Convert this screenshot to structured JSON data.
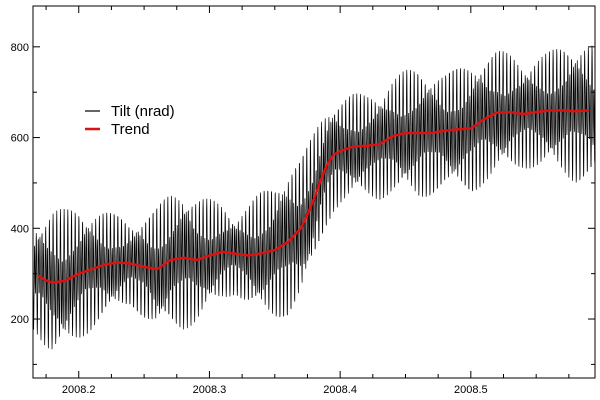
{
  "chart_data": {
    "type": "line",
    "title": "",
    "xlabel": "",
    "ylabel": "",
    "xlim": [
      2008.165,
      2008.595
    ],
    "ylim": [
      70,
      890
    ],
    "xticks_major": [
      2008.2,
      2008.3,
      2008.4,
      2008.5
    ],
    "xtick_labels": [
      "2008.2",
      "2008.3",
      "2008.4",
      "2008.5"
    ],
    "xticks_minor_step": 0.025,
    "yticks_major": [
      200,
      400,
      600,
      800
    ],
    "ytick_labels": [
      "200",
      "400",
      "600",
      "800"
    ],
    "yticks_minor": [
      100,
      300,
      500,
      700
    ],
    "grid": false,
    "legend_position": "upper-left",
    "series": [
      {
        "name": "Tilt (nrad)",
        "color": "#000000",
        "style": "oscillating signal (~2 cycles/day) around trend",
        "amplitude_envelope": {
          "x": [
            2008.165,
            2008.18,
            2008.2,
            2008.22,
            2008.24,
            2008.26,
            2008.28,
            2008.3,
            2008.32,
            2008.34,
            2008.36,
            2008.38,
            2008.4,
            2008.42,
            2008.44,
            2008.46,
            2008.48,
            2008.5,
            2008.52,
            2008.54,
            2008.56,
            2008.58,
            2008.595
          ],
          "values": [
            120,
            165,
            150,
            120,
            95,
            140,
            160,
            125,
            90,
            140,
            170,
            150,
            120,
            115,
            130,
            150,
            130,
            150,
            140,
            120,
            130,
            160,
            150
          ]
        }
      },
      {
        "name": "Trend",
        "color": "#dd1111",
        "x": [
          2008.169,
          2008.175,
          2008.18,
          2008.19,
          2008.2,
          2008.21,
          2008.22,
          2008.23,
          2008.24,
          2008.25,
          2008.26,
          2008.27,
          2008.28,
          2008.29,
          2008.3,
          2008.31,
          2008.32,
          2008.33,
          2008.34,
          2008.35,
          2008.36,
          2008.37,
          2008.375,
          2008.38,
          2008.385,
          2008.39,
          2008.395,
          2008.4,
          2008.41,
          2008.42,
          2008.43,
          2008.44,
          2008.45,
          2008.46,
          2008.47,
          2008.48,
          2008.49,
          2008.5,
          2008.51,
          2008.52,
          2008.53,
          2008.54,
          2008.55,
          2008.56,
          2008.57,
          2008.58,
          2008.59
        ],
        "values": [
          295,
          285,
          280,
          285,
          300,
          310,
          320,
          325,
          322,
          315,
          310,
          330,
          335,
          330,
          340,
          348,
          344,
          340,
          345,
          352,
          370,
          400,
          430,
          465,
          505,
          540,
          562,
          570,
          580,
          582,
          585,
          603,
          610,
          610,
          610,
          615,
          618,
          620,
          640,
          655,
          656,
          652,
          656,
          660,
          660,
          658,
          660
        ]
      }
    ]
  }
}
